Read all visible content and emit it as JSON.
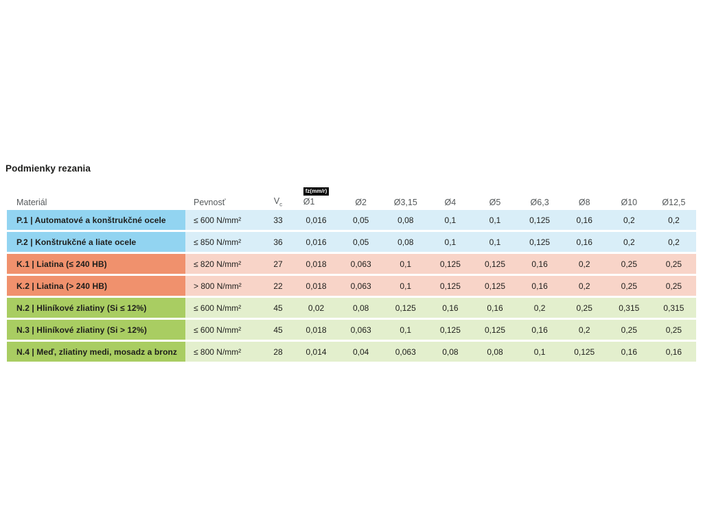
{
  "page": {
    "title": "Podmienky rezania"
  },
  "palette": {
    "blue_strong": "#92d4f1",
    "blue_light": "#d9eef8",
    "salmon_strong": "#f0916d",
    "salmon_light": "#f8d4c8",
    "green_strong": "#a9cd62",
    "green_light": "#e3efcd",
    "header_text": "#54585a",
    "body_text": "#1d1d1b",
    "badge_bg": "#000000",
    "badge_text": "#ffffff"
  },
  "table": {
    "unit_badge": "fz(mm/r)",
    "columns": {
      "material": "Materiál",
      "strength": "Pevnosť",
      "vc": {
        "label": "V",
        "sub": "c"
      },
      "diameters": [
        "Ø1",
        "Ø2",
        "Ø3,15",
        "Ø4",
        "Ø5",
        "Ø6,3",
        "Ø8",
        "Ø10",
        "Ø12,5"
      ]
    },
    "rows": [
      {
        "group": "blue",
        "material": "P.1 | Automatové a konštrukčné ocele",
        "strength": "≤ 600 N/mm²",
        "vc": "33",
        "fz": [
          "0,016",
          "0,05",
          "0,08",
          "0,1",
          "0,1",
          "0,125",
          "0,16",
          "0,2",
          "0,2"
        ]
      },
      {
        "group": "blue",
        "material": "P.2 | Konštrukčné a liate ocele",
        "strength": "≤ 850 N/mm²",
        "vc": "36",
        "fz": [
          "0,016",
          "0,05",
          "0,08",
          "0,1",
          "0,1",
          "0,125",
          "0,16",
          "0,2",
          "0,2"
        ]
      },
      {
        "group": "salmon",
        "material": "K.1 | Liatina (≤ 240 HB)",
        "strength": "≤ 820 N/mm²",
        "vc": "27",
        "fz": [
          "0,018",
          "0,063",
          "0,1",
          "0,125",
          "0,125",
          "0,16",
          "0,2",
          "0,25",
          "0,25"
        ]
      },
      {
        "group": "salmon",
        "material": "K.2 | Liatina (> 240 HB)",
        "strength": "> 800 N/mm²",
        "vc": "22",
        "fz": [
          "0,018",
          "0,063",
          "0,1",
          "0,125",
          "0,125",
          "0,16",
          "0,2",
          "0,25",
          "0,25"
        ]
      },
      {
        "group": "green",
        "material": "N.2 | Hliníkové zliatiny (Si ≤ 12%)",
        "strength": "≤ 600 N/mm²",
        "vc": "45",
        "fz": [
          "0,02",
          "0,08",
          "0,125",
          "0,16",
          "0,16",
          "0,2",
          "0,25",
          "0,315",
          "0,315"
        ]
      },
      {
        "group": "green",
        "material": "N.3 | Hliníkové zliatiny (Si > 12%)",
        "strength": "≤ 600 N/mm²",
        "vc": "45",
        "fz": [
          "0,018",
          "0,063",
          "0,1",
          "0,125",
          "0,125",
          "0,16",
          "0,2",
          "0,25",
          "0,25"
        ]
      },
      {
        "group": "green",
        "material": "N.4 | Meď, zliatiny medi, mosadz a bronz",
        "strength": "≤ 800 N/mm²",
        "vc": "28",
        "fz": [
          "0,014",
          "0,04",
          "0,063",
          "0,08",
          "0,08",
          "0,1",
          "0,125",
          "0,16",
          "0,16"
        ]
      }
    ]
  }
}
